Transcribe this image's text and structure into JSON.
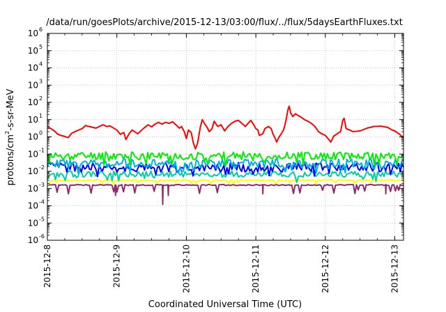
{
  "chart_data": {
    "type": "line",
    "title": "/data/run/goesPlots/archive/2015-12-13/03:00/flux/../flux/5daysEarthFluxes.txt",
    "xlabel": "Coordinated Universal Time (UTC)",
    "ylabel": "protons/cm²-s-sr-MeV",
    "ylabel_parts": {
      "pre": "protons/cm",
      "sup": "2",
      "post": "-s-sr-MeV"
    },
    "y_scale": "log",
    "ylim": [
      1e-06,
      1000000.0
    ],
    "y_ticks": [
      {
        "value": 1e-06,
        "base": "10",
        "exp": "-6"
      },
      {
        "value": 1e-05,
        "base": "10",
        "exp": "-5"
      },
      {
        "value": 0.0001,
        "base": "10",
        "exp": "-4"
      },
      {
        "value": 0.001,
        "base": "10",
        "exp": "-3"
      },
      {
        "value": 0.01,
        "base": "10",
        "exp": "-2"
      },
      {
        "value": 0.1,
        "base": "10",
        "exp": "-1"
      },
      {
        "value": 1.0,
        "base": "10",
        "exp": "0"
      },
      {
        "value": 10.0,
        "base": "10",
        "exp": "1"
      },
      {
        "value": 100.0,
        "base": "10",
        "exp": "2"
      },
      {
        "value": 1000.0,
        "base": "10",
        "exp": "3"
      },
      {
        "value": 10000.0,
        "base": "10",
        "exp": "4"
      },
      {
        "value": 100000.0,
        "base": "10",
        "exp": "5"
      },
      {
        "value": 1000000.0,
        "base": "10",
        "exp": "6"
      }
    ],
    "xlim": [
      "2015-12-08",
      "2015-12-13 03:00"
    ],
    "x_ticks": [
      "2015-12-8",
      "2015-12-9",
      "2015-12-10",
      "2015-12-11",
      "2015-12-12",
      "2015-12-13"
    ],
    "x_tick_days": [
      0,
      1,
      2,
      3,
      4,
      5
    ],
    "x_max_days": 5.125,
    "grid": true,
    "legend": "none",
    "series": [
      {
        "color": "#ff0000",
        "points": [
          [
            0,
            4
          ],
          [
            0.05,
            3
          ],
          [
            0.1,
            2.2
          ],
          [
            0.15,
            1.4
          ],
          [
            0.2,
            1.2
          ],
          [
            0.3,
            0.9
          ],
          [
            0.35,
            1.6
          ],
          [
            0.42,
            2.2
          ],
          [
            0.5,
            3
          ],
          [
            0.55,
            4.5
          ],
          [
            0.6,
            4
          ],
          [
            0.7,
            3.2
          ],
          [
            0.8,
            5
          ],
          [
            0.85,
            4
          ],
          [
            0.9,
            4.3
          ],
          [
            1.0,
            2.5
          ],
          [
            1.05,
            1.4
          ],
          [
            1.1,
            1.8
          ],
          [
            1.13,
            0.7
          ],
          [
            1.18,
            1.6
          ],
          [
            1.22,
            2.5
          ],
          [
            1.3,
            1.5
          ],
          [
            1.38,
            3
          ],
          [
            1.45,
            5
          ],
          [
            1.5,
            3.8
          ],
          [
            1.55,
            5.5
          ],
          [
            1.6,
            7
          ],
          [
            1.65,
            5.5
          ],
          [
            1.7,
            7
          ],
          [
            1.75,
            6
          ],
          [
            1.8,
            7.5
          ],
          [
            1.85,
            5
          ],
          [
            1.9,
            3.2
          ],
          [
            1.93,
            4
          ],
          [
            1.97,
            2
          ],
          [
            2.0,
            0.8
          ],
          [
            2.03,
            2.5
          ],
          [
            2.07,
            1.8
          ],
          [
            2.1,
            0.45
          ],
          [
            2.13,
            0.2
          ],
          [
            2.16,
            0.4
          ],
          [
            2.2,
            3.5
          ],
          [
            2.23,
            10
          ],
          [
            2.26,
            6
          ],
          [
            2.3,
            3.5
          ],
          [
            2.33,
            2
          ],
          [
            2.37,
            3
          ],
          [
            2.4,
            8
          ],
          [
            2.45,
            4
          ],
          [
            2.5,
            5
          ],
          [
            2.55,
            2.2
          ],
          [
            2.6,
            4
          ],
          [
            2.65,
            6
          ],
          [
            2.7,
            8
          ],
          [
            2.75,
            9
          ],
          [
            2.8,
            6
          ],
          [
            2.85,
            4
          ],
          [
            2.9,
            7
          ],
          [
            2.93,
            9
          ],
          [
            2.97,
            5
          ],
          [
            3.0,
            3
          ],
          [
            3.03,
            2.5
          ],
          [
            3.05,
            1.2
          ],
          [
            3.1,
            1.5
          ],
          [
            3.13,
            3
          ],
          [
            3.18,
            4
          ],
          [
            3.22,
            3
          ],
          [
            3.25,
            1.4
          ],
          [
            3.28,
            0.8
          ],
          [
            3.3,
            0.5
          ],
          [
            3.33,
            0.9
          ],
          [
            3.37,
            1.6
          ],
          [
            3.4,
            2.6
          ],
          [
            3.42,
            5
          ],
          [
            3.44,
            12
          ],
          [
            3.46,
            35
          ],
          [
            3.48,
            60
          ],
          [
            3.5,
            25
          ],
          [
            3.53,
            15
          ],
          [
            3.57,
            22
          ],
          [
            3.6,
            18
          ],
          [
            3.65,
            14
          ],
          [
            3.7,
            10
          ],
          [
            3.75,
            8
          ],
          [
            3.8,
            6
          ],
          [
            3.85,
            4
          ],
          [
            3.9,
            2
          ],
          [
            3.95,
            1.5
          ],
          [
            4.0,
            1.2
          ],
          [
            4.05,
            0.7
          ],
          [
            4.08,
            0.5
          ],
          [
            4.12,
            1.1
          ],
          [
            4.18,
            1.6
          ],
          [
            4.22,
            2
          ],
          [
            4.25,
            9
          ],
          [
            4.27,
            12
          ],
          [
            4.3,
            3
          ],
          [
            4.35,
            2.5
          ],
          [
            4.4,
            2
          ],
          [
            4.5,
            2.2
          ],
          [
            4.6,
            3.2
          ],
          [
            4.7,
            4
          ],
          [
            4.8,
            4.2
          ],
          [
            4.9,
            3.5
          ],
          [
            4.95,
            2.6
          ],
          [
            5.0,
            2.2
          ],
          [
            5.05,
            1.6
          ],
          [
            5.1,
            1.1
          ],
          [
            5.125,
            1.0
          ]
        ]
      },
      {
        "color": "#00ee00",
        "base": 0.08,
        "amp": 1.7,
        "dip": 0.4,
        "seed": 11
      },
      {
        "color": "#00b0e0",
        "base": 0.028,
        "amp": 1.9,
        "dip": 0.4,
        "seed": 23
      },
      {
        "color": "#0000ff",
        "base": 0.017,
        "amp": 1.9,
        "dip": 0.45,
        "seed": 37
      },
      {
        "color": "#00cfa0",
        "base": 0.007,
        "amp": 1.5,
        "dip": 0.45,
        "seed": 53
      },
      {
        "color": "#ffff00",
        "base": 0.003,
        "amp": 1.1,
        "dip": 0.6,
        "seed": 71
      },
      {
        "color": "#8b2a6e",
        "base": 0.0016,
        "amp": 1.08,
        "dip": 0.3,
        "seed": 97,
        "spikes": [
          [
            0.98,
            0.0004
          ],
          [
            1.66,
            0.00012
          ],
          [
            1.74,
            0.0004
          ],
          [
            3.1,
            0.0005
          ],
          [
            4.87,
            0.0005
          ]
        ]
      }
    ]
  }
}
